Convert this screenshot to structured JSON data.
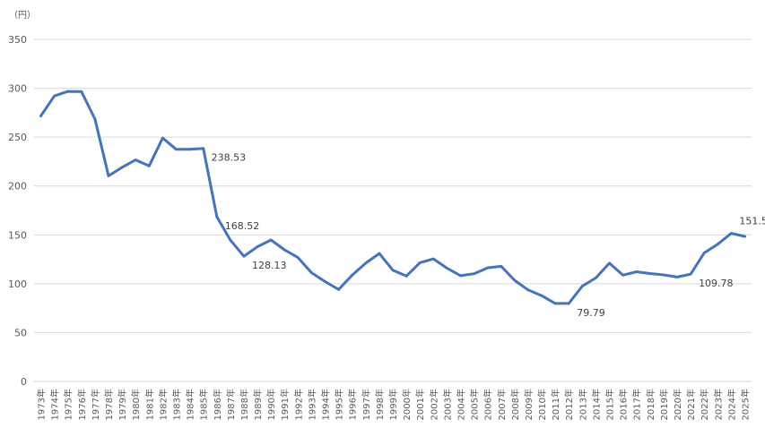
{
  "chart_data": {
    "type": "line",
    "unit_label": "（円）",
    "ylim": [
      0,
      350
    ],
    "yticks": [
      "0",
      "50",
      "100",
      "150",
      "200",
      "250",
      "300",
      "350"
    ],
    "grid": true,
    "legend": "none",
    "line_color": "#4472c4",
    "x": [
      "1973年",
      "1974年",
      "1975年",
      "1976年",
      "1977年",
      "1978年",
      "1979年",
      "1980年",
      "1981年",
      "1982年",
      "1983年",
      "1984年",
      "1985年",
      "1986年",
      "1987年",
      "1988年",
      "1989年",
      "1990年",
      "1991年",
      "1992年",
      "1993年",
      "1994年",
      "1995年",
      "1996年",
      "1997年",
      "1998年",
      "1999年",
      "2000年",
      "2001年",
      "2002年",
      "2003年",
      "2004年",
      "2005年",
      "2006年",
      "2007年",
      "2008年",
      "2009年",
      "2010年",
      "2011年",
      "2012年",
      "2013年",
      "2014年",
      "2015年",
      "2016年",
      "2017年",
      "2018年",
      "2019年",
      "2020年",
      "2021年",
      "2022年",
      "2023年",
      "2024年",
      "2025年"
    ],
    "series": [
      {
        "values": [
          271.7,
          292.1,
          296.8,
          296.6,
          268.5,
          210.4,
          219.1,
          226.7,
          220.5,
          249.1,
          237.5,
          237.5,
          238.53,
          168.52,
          144.6,
          128.13,
          137.9,
          144.8,
          134.7,
          126.7,
          111.2,
          102.2,
          94.1,
          108.8,
          121.0,
          130.9,
          113.9,
          107.8,
          121.5,
          125.4,
          115.9,
          108.2,
          110.2,
          116.3,
          117.8,
          103.4,
          93.6,
          87.8,
          79.8,
          79.79,
          97.6,
          105.9,
          121.0,
          108.8,
          112.2,
          110.4,
          109.0,
          106.8,
          109.78,
          131.5,
          140.5,
          151.5,
          148.4
        ],
        "data_labels": [
          {
            "index": 12,
            "text": "238.53"
          },
          {
            "index": 13,
            "text": "168.52"
          },
          {
            "index": 15,
            "text": "128.13"
          },
          {
            "index": 39,
            "text": "79.79"
          },
          {
            "index": 48,
            "text": "109.78"
          },
          {
            "index": 51,
            "text": "151.5"
          }
        ]
      }
    ]
  }
}
